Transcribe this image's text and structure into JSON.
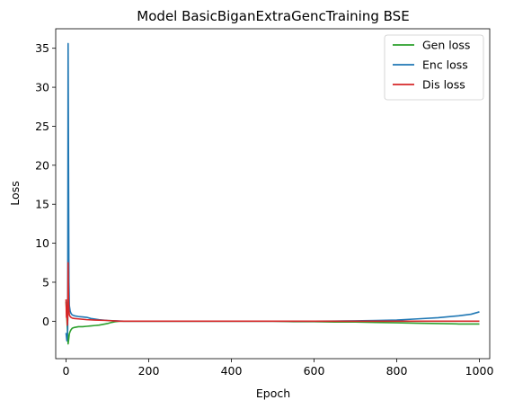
{
  "chart_data": {
    "type": "line",
    "title": "Model BasicBiganExtraGencTraining BSE",
    "xlabel": "Epoch",
    "ylabel": "Loss",
    "xlim": [
      -25,
      1025
    ],
    "ylim": [
      -4.8,
      37.5
    ],
    "x_ticks": [
      0,
      200,
      400,
      600,
      800,
      1000
    ],
    "y_ticks": [
      0,
      5,
      10,
      15,
      20,
      25,
      30,
      35
    ],
    "legend_position": "top-right",
    "grid": false,
    "series": [
      {
        "name": "Gen loss",
        "color": "#2ca02c",
        "x": [
          0,
          2,
          4,
          5,
          6,
          8,
          10,
          12,
          15,
          20,
          30,
          40,
          50,
          60,
          70,
          80,
          90,
          100,
          110,
          120,
          130,
          140,
          160,
          200,
          300,
          400,
          500,
          550,
          600,
          650,
          700,
          750,
          800,
          850,
          900,
          950,
          1000
        ],
        "y": [
          2.5,
          0.3,
          -1.8,
          -2.9,
          -2.5,
          -1.6,
          -1.3,
          -1.1,
          -0.9,
          -0.8,
          -0.7,
          -0.7,
          -0.65,
          -0.6,
          -0.55,
          -0.5,
          -0.4,
          -0.3,
          -0.15,
          -0.05,
          0.0,
          0.0,
          0.0,
          0.0,
          0.0,
          0.0,
          0.0,
          -0.05,
          -0.05,
          -0.1,
          -0.1,
          -0.15,
          -0.2,
          -0.25,
          -0.3,
          -0.35,
          -0.35
        ]
      },
      {
        "name": "Enc loss",
        "color": "#1f77b4",
        "x": [
          0,
          2,
          4,
          5,
          6,
          7,
          8,
          10,
          12,
          15,
          20,
          30,
          40,
          50,
          60,
          80,
          100,
          120,
          140,
          200,
          400,
          600,
          650,
          700,
          750,
          800,
          850,
          900,
          950,
          980,
          1000
        ],
        "y": [
          -1.5,
          -2.5,
          -1.0,
          35.6,
          20.0,
          5.0,
          2.0,
          1.3,
          1.0,
          0.8,
          0.7,
          0.6,
          0.55,
          0.5,
          0.35,
          0.2,
          0.1,
          0.05,
          0.0,
          0.0,
          0.0,
          0.0,
          0.02,
          0.05,
          0.1,
          0.15,
          0.3,
          0.45,
          0.7,
          0.9,
          1.2
        ]
      },
      {
        "name": "Dis loss",
        "color": "#d62728",
        "x": [
          0,
          1,
          2,
          3,
          4,
          5,
          6,
          7,
          8,
          10,
          12,
          15,
          20,
          30,
          50,
          70,
          100,
          130,
          200,
          400,
          600,
          800,
          1000
        ],
        "y": [
          2.8,
          0.5,
          2.0,
          -0.5,
          0.2,
          7.5,
          3.0,
          1.5,
          0.8,
          0.6,
          0.5,
          0.4,
          0.35,
          0.3,
          0.2,
          0.15,
          0.1,
          0.0,
          0.0,
          0.0,
          0.0,
          0.0,
          0.0
        ]
      }
    ]
  }
}
